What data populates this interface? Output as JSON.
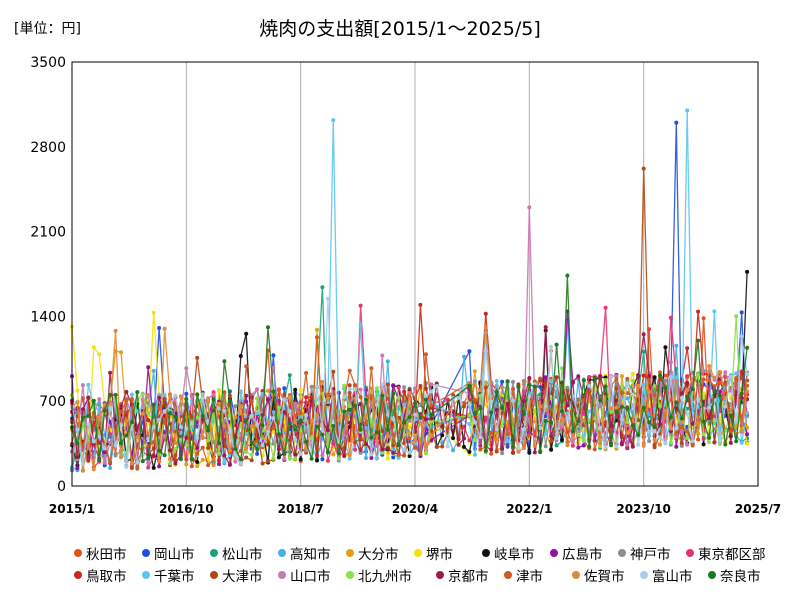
{
  "unit_label": "[単位：円]",
  "chart_data": {
    "type": "line",
    "title": "焼肉の支出額[2015/1～2025/5]",
    "xlabel": "",
    "ylabel": "",
    "ylim": [
      0,
      3500
    ],
    "yticks": [
      0,
      700,
      1400,
      2100,
      2800,
      3500
    ],
    "ytick_labels": [
      "0",
      "700",
      "1400",
      "2100",
      "2800",
      "3500"
    ],
    "x_start": "2015/1",
    "x_end": "2025/7",
    "xticks": [
      "2015/1",
      "2016/10",
      "2018/7",
      "2020/4",
      "2022/1",
      "2023/10",
      "2025/7"
    ],
    "grid": "vertical",
    "legend_position": "bottom",
    "series": [
      {
        "name": "秋田市",
        "color": "#e8501e"
      },
      {
        "name": "岡山市",
        "color": "#1f4fe0"
      },
      {
        "name": "松山市",
        "color": "#1aa37a"
      },
      {
        "name": "高知市",
        "color": "#45b0e8"
      },
      {
        "name": "大分市",
        "color": "#e0a010"
      },
      {
        "name": "堺市",
        "color": "#f5e10a"
      },
      {
        "name": "岐阜市",
        "color": "#111111"
      },
      {
        "name": "広島市",
        "color": "#8e12a8"
      },
      {
        "name": "神戸市",
        "color": "#8a8f96"
      },
      {
        "name": "東京都区部",
        "color": "#e8336b"
      },
      {
        "name": "鳥取市",
        "color": "#c8281e"
      },
      {
        "name": "千葉市",
        "color": "#5cc5ef"
      },
      {
        "name": "大津市",
        "color": "#b04a1a"
      },
      {
        "name": "山口市",
        "color": "#c878b0"
      },
      {
        "name": "北九州市",
        "color": "#88e04a"
      },
      {
        "name": "京都市",
        "color": "#a01a50"
      },
      {
        "name": "津市",
        "color": "#d05a20"
      },
      {
        "name": "佐賀市",
        "color": "#e08a3a"
      },
      {
        "name": "富山市",
        "color": "#a8cdea"
      },
      {
        "name": "奈良市",
        "color": "#1f7a1f"
      }
    ],
    "annotations": [
      {
        "series": "千葉市",
        "x": "2019/1",
        "y": 3020
      },
      {
        "series": "千葉市",
        "x": "2024/6",
        "y": 3100
      },
      {
        "series": "岡山市",
        "x": "2024/4",
        "y": 3000
      },
      {
        "series": "大津市",
        "x": "2023/10",
        "y": 2620
      },
      {
        "series": "山口市",
        "x": "2022/1",
        "y": 2300
      }
    ]
  }
}
